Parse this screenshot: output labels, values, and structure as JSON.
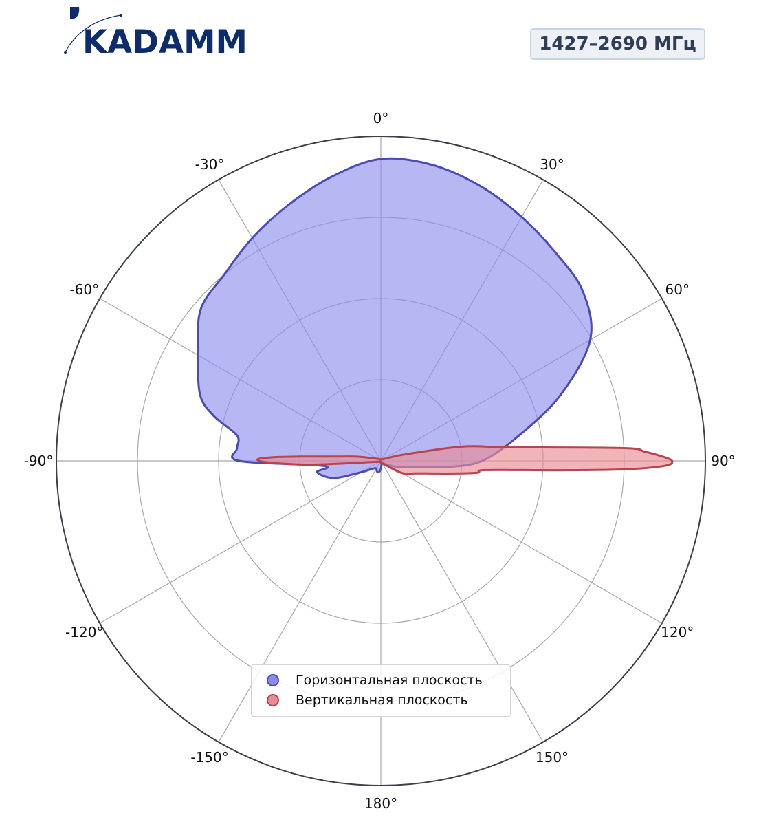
{
  "header": {
    "logo_text": "KADAMM",
    "frequency_badge": "1427–2690 МГц"
  },
  "colors": {
    "brand": "#0d2c6b",
    "horizontal_fill": "#8a8aee",
    "horizontal_line": "#4a4ab8",
    "vertical_fill": "#ea8c94",
    "vertical_line": "#b84450",
    "grid": "#a8a8a8",
    "outer_ring": "#3a3f4a"
  },
  "chart_data": {
    "type": "polar",
    "title": "",
    "angle_unit": "deg",
    "zero_direction": "top",
    "direction": "clockwise",
    "angle_ticks": [
      {
        "angle": 0,
        "label": "0°"
      },
      {
        "angle": 30,
        "label": "30°"
      },
      {
        "angle": 60,
        "label": "60°"
      },
      {
        "angle": 90,
        "label": "90°"
      },
      {
        "angle": 120,
        "label": "120°"
      },
      {
        "angle": 150,
        "label": "150°"
      },
      {
        "angle": 180,
        "label": "180°"
      },
      {
        "angle": -150,
        "label": "-150°"
      },
      {
        "angle": -120,
        "label": "-120°"
      },
      {
        "angle": -90,
        "label": "-90°"
      },
      {
        "angle": -60,
        "label": "-60°"
      },
      {
        "angle": -30,
        "label": "-30°"
      }
    ],
    "radial_range": [
      0,
      4
    ],
    "radial_grid": [
      1,
      2,
      3,
      4
    ],
    "radial_tick_labels": "hidden",
    "grid": true,
    "legend_position": "lower-center",
    "series": [
      {
        "name": "Горизонтальная плоскость",
        "angles": [
          0,
          10,
          20,
          30,
          40,
          50,
          60,
          70,
          80,
          90,
          95,
          100,
          110,
          120,
          130,
          140,
          150,
          160,
          170,
          180,
          -170,
          -160,
          -150,
          -140,
          -130,
          -120,
          -110,
          -100,
          -95,
          -90,
          -85,
          -80,
          -75,
          -70,
          -60,
          -50,
          -40,
          -30,
          -20,
          -10
        ],
        "r": [
          3.72,
          3.7,
          3.6,
          3.47,
          3.35,
          3.25,
          2.98,
          2.35,
          1.71,
          1.25,
          0.85,
          0.45,
          0.22,
          0.1,
          0.05,
          0.03,
          0.02,
          0.02,
          0.05,
          0.1,
          0.14,
          0.14,
          0.11,
          0.12,
          0.16,
          0.28,
          0.62,
          0.8,
          0.71,
          1.75,
          1.78,
          1.8,
          2.13,
          2.37,
          2.6,
          2.9,
          3.0,
          3.17,
          3.35,
          3.55
        ]
      },
      {
        "name": "Вертикальная плоскость",
        "angles": [
          0,
          30,
          60,
          70,
          75,
          80,
          84,
          87,
          88,
          89,
          90,
          91,
          92,
          93,
          95,
          97,
          100,
          105,
          110,
          120,
          180,
          -120,
          -95,
          -93,
          -91,
          -90,
          -89,
          -88,
          -87,
          -85,
          -80,
          -60,
          -30
        ],
        "r": [
          0.02,
          0.02,
          0.05,
          0.12,
          0.3,
          1.0,
          1.6,
          3.0,
          3.25,
          3.45,
          3.59,
          3.5,
          3.0,
          2.2,
          1.3,
          1.2,
          0.9,
          0.6,
          0.45,
          0.3,
          0.02,
          0.02,
          0.25,
          0.9,
          1.35,
          1.5,
          1.5,
          1.3,
          1.0,
          0.6,
          0.3,
          0.05,
          0.02
        ]
      }
    ]
  },
  "legend": {
    "items": [
      {
        "label": "Горизонтальная плоскость"
      },
      {
        "label": "Вертикальная плоскость"
      }
    ]
  }
}
